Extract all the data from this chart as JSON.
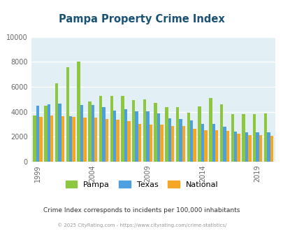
{
  "title": "Pampa Property Crime Index",
  "years_all": [
    1999,
    2000,
    2001,
    2002,
    2003,
    2004,
    2005,
    2006,
    2007,
    2008,
    2009,
    2010,
    2011,
    2012,
    2013,
    2014,
    2015,
    2016,
    2017,
    2018,
    2019,
    2020
  ],
  "pampa_vals": [
    3700,
    4500,
    6300,
    7600,
    8050,
    4850,
    5250,
    5250,
    5300,
    4950,
    5000,
    4700,
    4350,
    4350,
    3950,
    4450,
    5100,
    4600,
    3800,
    3800,
    3800,
    3850
  ],
  "texas_vals": [
    4500,
    4600,
    4650,
    3650,
    4550,
    4550,
    4350,
    4100,
    4200,
    4050,
    4050,
    3850,
    3500,
    3400,
    3300,
    3050,
    3050,
    2800,
    2400,
    2350,
    2350,
    2350
  ],
  "national_vals": [
    3600,
    3700,
    3650,
    3600,
    3550,
    3550,
    3450,
    3350,
    3250,
    3050,
    3000,
    2950,
    2850,
    2850,
    2650,
    2550,
    2500,
    2450,
    2250,
    2150,
    2150,
    2100
  ],
  "color_pampa": "#8dc63f",
  "color_texas": "#4d9fe0",
  "color_national": "#f5a623",
  "bg_color": "#e2eff5",
  "title_color": "#1a5276",
  "subtitle": "Crime Index corresponds to incidents per 100,000 inhabitants",
  "footer": "© 2025 CityRating.com - https://www.cityrating.com/crime-statistics/",
  "ylim": [
    0,
    10000
  ],
  "yticks": [
    0,
    2000,
    4000,
    6000,
    8000,
    10000
  ],
  "xtick_years": [
    1999,
    2004,
    2009,
    2014,
    2019
  ]
}
